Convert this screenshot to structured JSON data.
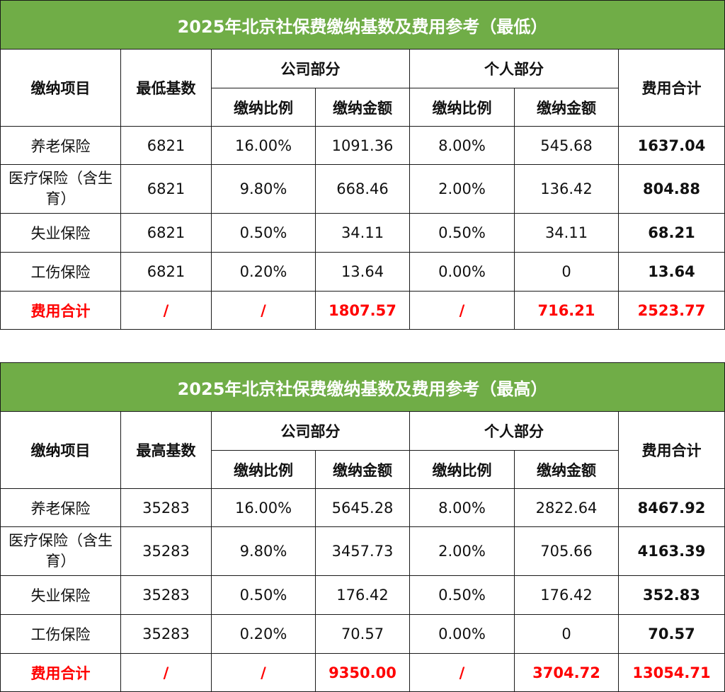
{
  "tables": [
    {
      "title": "2025年北京社保费缴纳基数及费用参考（最低）",
      "headers": {
        "item": "缴纳项目",
        "base": "最低基数",
        "company": "公司部分",
        "personal": "个人部分",
        "total": "费用合计",
        "rate": "缴纳比例",
        "amount": "缴纳金额"
      },
      "rows": [
        {
          "name": "养老保险",
          "base": "6821",
          "company_rate": "16.00%",
          "company_amount": "1091.36",
          "personal_rate": "8.00%",
          "personal_amount": "545.68",
          "total": "1637.04"
        },
        {
          "name": "医疗保险（含生育）",
          "base": "6821",
          "company_rate": "9.80%",
          "company_amount": "668.46",
          "personal_rate": "2.00%",
          "personal_amount": "136.42",
          "total": "804.88"
        },
        {
          "name": "失业保险",
          "base": "6821",
          "company_rate": "0.50%",
          "company_amount": "34.11",
          "personal_rate": "0.50%",
          "personal_amount": "34.11",
          "total": "68.21"
        },
        {
          "name": "工伤保险",
          "base": "6821",
          "company_rate": "0.20%",
          "company_amount": "13.64",
          "personal_rate": "0.00%",
          "personal_amount": "0",
          "total": "13.64"
        }
      ],
      "summary": {
        "name": "费用合计",
        "base": "/",
        "company_rate": "/",
        "company_amount": "1807.57",
        "personal_rate": "/",
        "personal_amount": "716.21",
        "total": "2523.77"
      }
    },
    {
      "title": "2025年北京社保费缴纳基数及费用参考（最高）",
      "headers": {
        "item": "缴纳项目",
        "base": "最高基数",
        "company": "公司部分",
        "personal": "个人部分",
        "total": "费用合计",
        "rate": "缴纳比例",
        "amount": "缴纳金额"
      },
      "rows": [
        {
          "name": "养老保险",
          "base": "35283",
          "company_rate": "16.00%",
          "company_amount": "5645.28",
          "personal_rate": "8.00%",
          "personal_amount": "2822.64",
          "total": "8467.92"
        },
        {
          "name": "医疗保险（含生育）",
          "base": "35283",
          "company_rate": "9.80%",
          "company_amount": "3457.73",
          "personal_rate": "2.00%",
          "personal_amount": "705.66",
          "total": "4163.39"
        },
        {
          "name": "失业保险",
          "base": "35283",
          "company_rate": "0.50%",
          "company_amount": "176.42",
          "personal_rate": "0.50%",
          "personal_amount": "176.42",
          "total": "352.83"
        },
        {
          "name": "工伤保险",
          "base": "35283",
          "company_rate": "0.20%",
          "company_amount": "70.57",
          "personal_rate": "0.00%",
          "personal_amount": "0",
          "total": "70.57"
        }
      ],
      "summary": {
        "name": "费用合计",
        "base": "/",
        "company_rate": "/",
        "company_amount": "9350.00",
        "personal_rate": "/",
        "personal_amount": "3704.72",
        "total": "13054.71"
      }
    }
  ],
  "colors": {
    "title_background": "#70ad47",
    "title_text": "#ffffff",
    "summary_text": "#ff0000",
    "border": "#1a1a1a"
  }
}
